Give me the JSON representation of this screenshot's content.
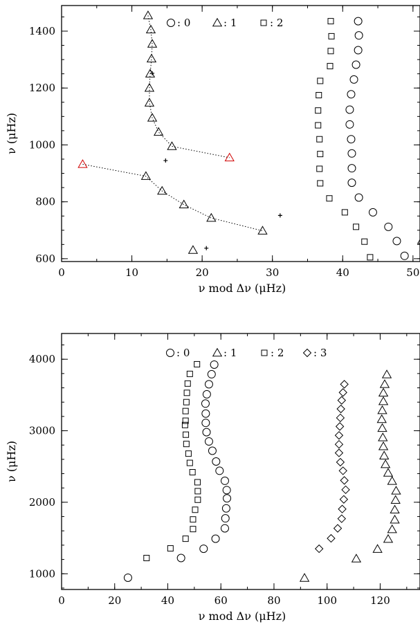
{
  "chart_data": [
    {
      "type": "scatter",
      "xlabel": "ν mod Δν (μHz)",
      "ylabel": "ν (μHz)",
      "xlim": [
        0,
        51
      ],
      "ylim": [
        590,
        1490
      ],
      "x_ticks": [
        0,
        10,
        20,
        30,
        40,
        50
      ],
      "y_ticks": [
        600,
        800,
        1000,
        1200,
        1400
      ],
      "legend": [
        {
          "symbol": "circle",
          "label": ": 0"
        },
        {
          "symbol": "triangle",
          "label": ": 1"
        },
        {
          "symbol": "square",
          "label": ": 2"
        }
      ],
      "series": [
        {
          "symbol": "circle",
          "color": "#000000",
          "points": [
            [
              42.2,
              1435
            ],
            [
              42.3,
              1385
            ],
            [
              42.2,
              1333
            ],
            [
              41.9,
              1282
            ],
            [
              41.6,
              1230
            ],
            [
              41.2,
              1178
            ],
            [
              41.0,
              1124
            ],
            [
              41.0,
              1072
            ],
            [
              41.2,
              1020
            ],
            [
              41.3,
              970
            ],
            [
              41.3,
              918
            ],
            [
              41.3,
              867
            ],
            [
              42.3,
              815
            ],
            [
              44.3,
              763
            ],
            [
              46.5,
              712
            ],
            [
              47.7,
              662
            ],
            [
              48.8,
              610
            ]
          ]
        },
        {
          "symbol": "triangle",
          "color": "#000000",
          "points": [
            [
              12.3,
              1455
            ],
            [
              12.7,
              1405
            ],
            [
              12.9,
              1355
            ],
            [
              12.8,
              1303
            ],
            [
              12.6,
              1250
            ],
            [
              12.5,
              1200
            ],
            [
              12.5,
              1148
            ],
            [
              12.9,
              1095
            ],
            [
              13.8,
              1045
            ],
            [
              15.7,
              995
            ],
            [
              12.0,
              890
            ],
            [
              14.3,
              838
            ],
            [
              17.4,
              790
            ],
            [
              21.3,
              743
            ],
            [
              28.6,
              698
            ],
            [
              18.7,
              630
            ],
            [
              51.3,
              665
            ]
          ]
        },
        {
          "symbol": "triangle",
          "color": "#d00000",
          "points": [
            [
              3.0,
              932
            ],
            [
              23.9,
              955
            ]
          ]
        },
        {
          "symbol": "square",
          "color": "#000000",
          "points": [
            [
              38.3,
              1435
            ],
            [
              38.4,
              1382
            ],
            [
              38.3,
              1330
            ],
            [
              38.2,
              1277
            ],
            [
              36.8,
              1225
            ],
            [
              36.6,
              1175
            ],
            [
              36.5,
              1121
            ],
            [
              36.5,
              1069
            ],
            [
              36.7,
              1020
            ],
            [
              36.8,
              968
            ],
            [
              36.7,
              916
            ],
            [
              36.8,
              865
            ],
            [
              38.1,
              812
            ],
            [
              40.3,
              763
            ],
            [
              41.9,
              712
            ],
            [
              43.1,
              660
            ],
            [
              43.9,
              605
            ]
          ]
        },
        {
          "symbol": "plus",
          "color": "#000000",
          "points": [
            [
              12.9,
              1252
            ],
            [
              14.8,
              945
            ],
            [
              31.1,
              752
            ],
            [
              20.6,
              637
            ]
          ]
        }
      ],
      "connectors": [
        [
          [
            15.7,
            995
          ],
          [
            23.9,
            955
          ]
        ],
        [
          [
            3.0,
            932
          ],
          [
            12.0,
            890
          ],
          [
            14.3,
            838
          ],
          [
            17.4,
            790
          ],
          [
            21.3,
            743
          ],
          [
            28.6,
            698
          ]
        ],
        [
          [
            12.3,
            1455
          ],
          [
            12.7,
            1405
          ],
          [
            12.9,
            1355
          ],
          [
            12.8,
            1303
          ],
          [
            12.6,
            1250
          ],
          [
            12.5,
            1200
          ],
          [
            12.5,
            1148
          ],
          [
            12.9,
            1095
          ],
          [
            13.8,
            1045
          ],
          [
            15.7,
            995
          ]
        ]
      ]
    },
    {
      "type": "scatter",
      "xlabel": "ν mod Δν (μHz)",
      "ylabel": "ν (μHz)",
      "xlim": [
        0,
        135
      ],
      "ylim": [
        780,
        4360
      ],
      "x_ticks": [
        0,
        20,
        40,
        60,
        80,
        100,
        120
      ],
      "y_ticks": [
        1000,
        2000,
        3000,
        4000
      ],
      "legend": [
        {
          "symbol": "circle",
          "label": ": 0"
        },
        {
          "symbol": "triangle",
          "label": ": 1"
        },
        {
          "symbol": "square",
          "label": ": 2"
        },
        {
          "symbol": "diamond",
          "label": ": 3"
        }
      ],
      "series": [
        {
          "symbol": "circle",
          "color": "#000000",
          "points": [
            [
              25,
              945
            ],
            [
              45,
              1220
            ],
            [
              53.5,
              1350
            ],
            [
              58,
              1490
            ],
            [
              61.5,
              1635
            ],
            [
              61.7,
              1775
            ],
            [
              62,
              1915
            ],
            [
              62.3,
              2055
            ],
            [
              62.2,
              2170
            ],
            [
              61.5,
              2300
            ],
            [
              59.5,
              2440
            ],
            [
              58.2,
              2570
            ],
            [
              56.8,
              2720
            ],
            [
              55.5,
              2850
            ],
            [
              54.6,
              2980
            ],
            [
              54.3,
              3110
            ],
            [
              54.3,
              3240
            ],
            [
              54.2,
              3380
            ],
            [
              54.7,
              3510
            ],
            [
              55.5,
              3650
            ],
            [
              56.5,
              3790
            ],
            [
              57.5,
              3925
            ]
          ]
        },
        {
          "symbol": "triangle",
          "color": "#000000",
          "points": [
            [
              91.5,
              940
            ],
            [
              111,
              1210
            ],
            [
              119,
              1345
            ],
            [
              123,
              1485
            ],
            [
              124.5,
              1620
            ],
            [
              125.5,
              1755
            ],
            [
              125.5,
              1895
            ],
            [
              125.8,
              2030
            ],
            [
              126,
              2160
            ],
            [
              124.5,
              2295
            ],
            [
              123,
              2410
            ],
            [
              122,
              2530
            ],
            [
              121.5,
              2650
            ],
            [
              121.2,
              2780
            ],
            [
              121,
              2905
            ],
            [
              120.8,
              3035
            ],
            [
              120.6,
              3160
            ],
            [
              120.8,
              3285
            ],
            [
              121.2,
              3410
            ],
            [
              121.2,
              3530
            ],
            [
              121.7,
              3650
            ],
            [
              122.5,
              3785
            ]
          ]
        },
        {
          "symbol": "square",
          "color": "#000000",
          "points": [
            [
              32,
              1220
            ],
            [
              41,
              1355
            ],
            [
              46.7,
              1490
            ],
            [
              49.5,
              1625
            ],
            [
              49.5,
              1760
            ],
            [
              50.3,
              1895
            ],
            [
              51.3,
              2035
            ],
            [
              51.3,
              2155
            ],
            [
              51.2,
              2280
            ],
            [
              49.3,
              2420
            ],
            [
              48.3,
              2550
            ],
            [
              47.8,
              2680
            ],
            [
              47,
              2815
            ],
            [
              46.8,
              2945
            ],
            [
              46.5,
              3080
            ],
            [
              46.7,
              3140
            ],
            [
              46.7,
              3275
            ],
            [
              47,
              3400
            ],
            [
              47.2,
              3530
            ],
            [
              47.5,
              3660
            ],
            [
              48.3,
              3795
            ],
            [
              51,
              3930
            ]
          ]
        },
        {
          "symbol": "diamond",
          "color": "#000000",
          "points": [
            [
              97,
              1350
            ],
            [
              101.5,
              1495
            ],
            [
              104,
              1635
            ],
            [
              105.5,
              1770
            ],
            [
              105.7,
              1905
            ],
            [
              106.3,
              2040
            ],
            [
              107,
              2175
            ],
            [
              106.5,
              2305
            ],
            [
              106,
              2440
            ],
            [
              105,
              2560
            ],
            [
              104.5,
              2690
            ],
            [
              104.5,
              2810
            ],
            [
              104.5,
              2935
            ],
            [
              104.8,
              3060
            ],
            [
              105,
              3180
            ],
            [
              105.2,
              3305
            ],
            [
              105.5,
              3425
            ],
            [
              106,
              3535
            ],
            [
              106.5,
              3650
            ]
          ]
        }
      ],
      "connectors": []
    }
  ]
}
